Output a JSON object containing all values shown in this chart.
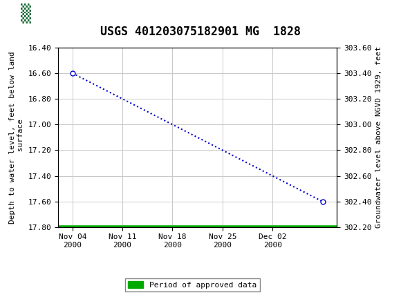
{
  "title": "USGS 401203075182901 MG  1828",
  "ylabel_left": "Depth to water level, feet below land\n surface",
  "ylabel_right": "Groundwater level above NGVD 1929, feet",
  "ylim_left": [
    17.8,
    16.4
  ],
  "ylim_right": [
    302.2,
    303.6
  ],
  "yticks_left": [
    16.4,
    16.6,
    16.8,
    17.0,
    17.2,
    17.4,
    17.6,
    17.8
  ],
  "yticks_right": [
    302.2,
    302.4,
    302.6,
    302.8,
    303.0,
    303.2,
    303.4,
    303.6
  ],
  "xtick_labels": [
    "Nov 04\n2000",
    "Nov 11\n2000",
    "Nov 18\n2000",
    "Nov 25\n2000",
    "Dec 02\n2000"
  ],
  "header_bg": "#1b6b3a",
  "header_text": "#ffffff",
  "bg_color": "#ffffff",
  "plot_bg": "#ffffff",
  "grid_color": "#c8c8c8",
  "dotted_line_color": "#0000cc",
  "green_line_color": "#00aa00",
  "marker_color": "#0000cc",
  "marker_face": "#ffffff",
  "title_fontsize": 12,
  "axis_label_fontsize": 8,
  "tick_fontsize": 8,
  "legend_fontsize": 8,
  "data_x_days": [
    0,
    7,
    14,
    21,
    28,
    35
  ],
  "data_y_depth": [
    16.6,
    16.8,
    17.0,
    17.2,
    17.4,
    17.6
  ],
  "green_bar_y": 17.8,
  "green_bar_x_start_days": -2,
  "green_bar_x_end_days": 37,
  "xtick_days": [
    0,
    7,
    14,
    21,
    28
  ],
  "xlim": [
    -2,
    37
  ]
}
